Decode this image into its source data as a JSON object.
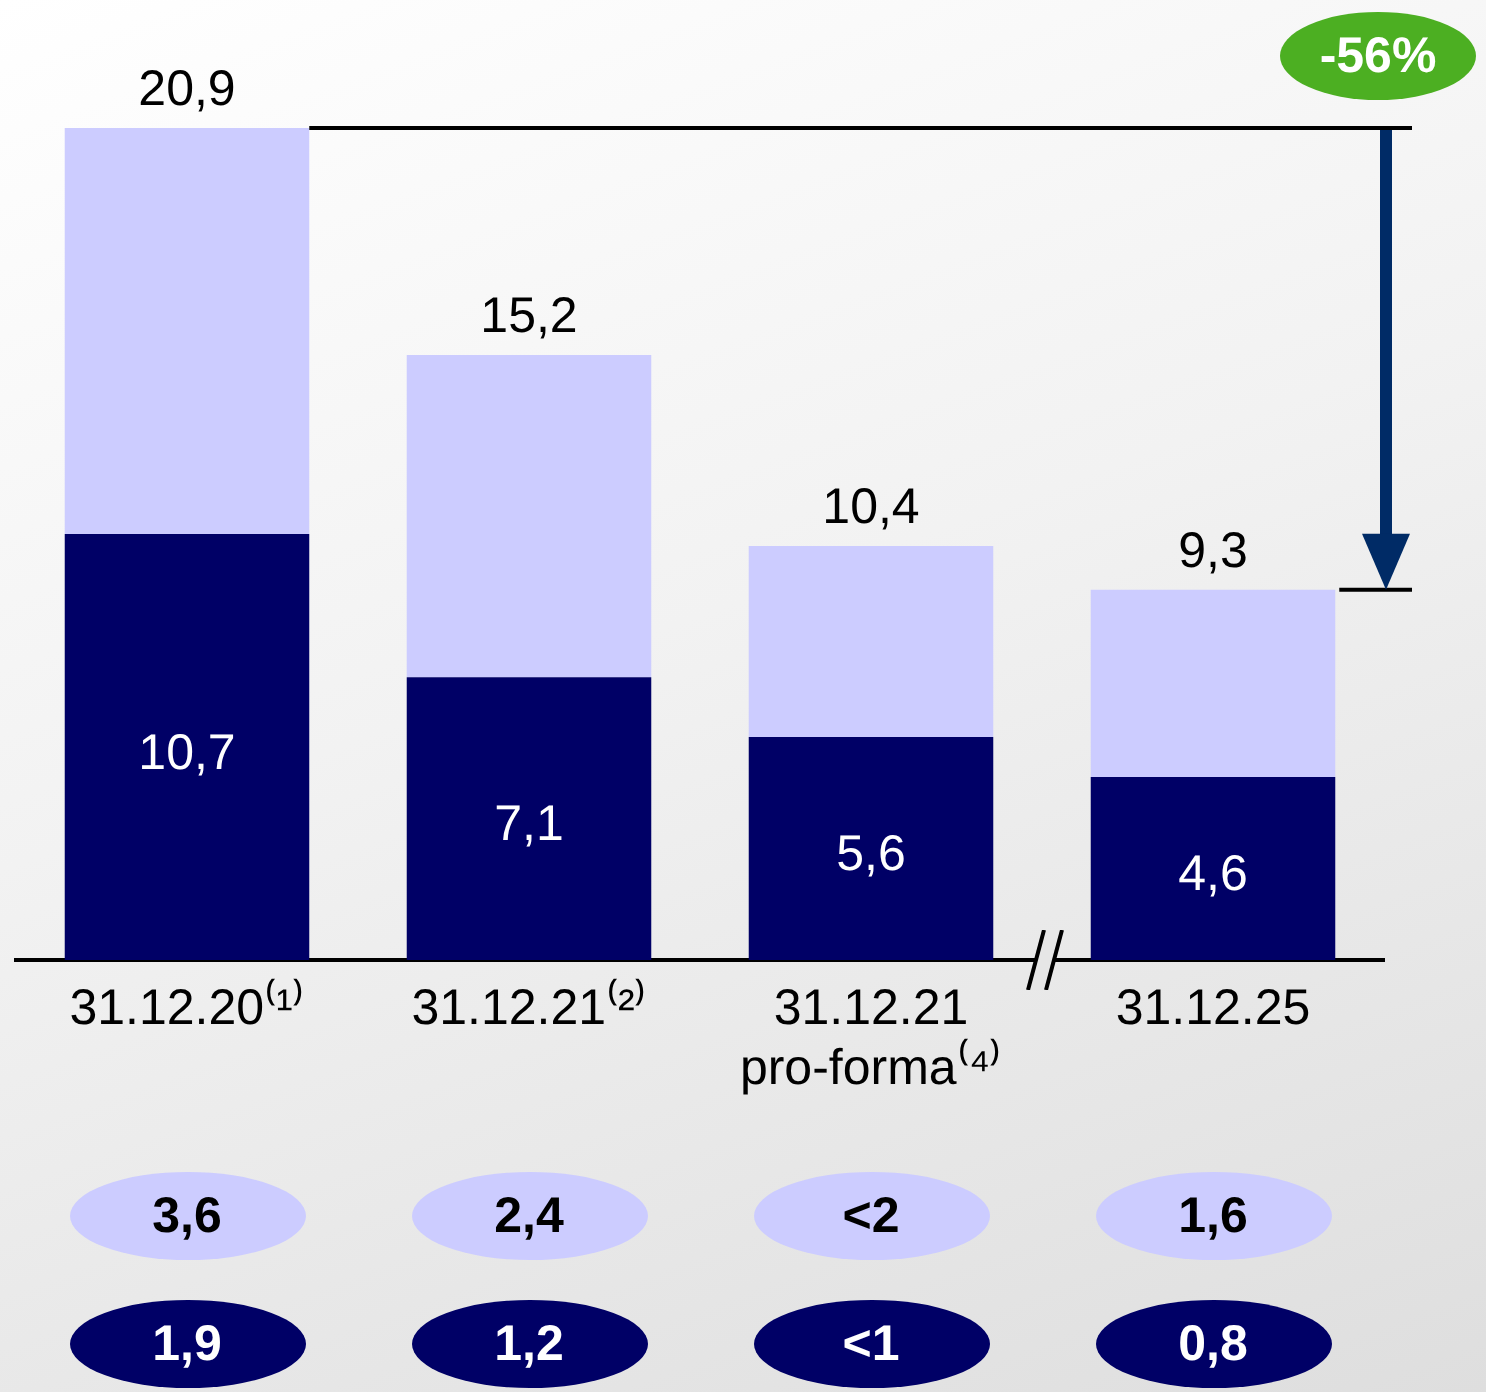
{
  "chart_data": {
    "type": "bar",
    "stacked": true,
    "legend": false,
    "grid": false,
    "tick_labels": "x",
    "categories": [
      "31.12.20⁽¹⁾",
      "31.12.21⁽²⁾",
      "31.12.21 pro-forma⁽⁴⁾",
      "31.12.25"
    ],
    "series": [
      {
        "color": "#000066",
        "values": [
          10.7,
          7.1,
          5.6,
          4.6
        ],
        "value_labels": [
          "10,7",
          "7,1",
          "5,6",
          "4,6"
        ]
      },
      {
        "color": "#ccccff",
        "values": [
          10.2,
          8.1,
          4.8,
          4.7
        ]
      }
    ],
    "totals": [
      "20,9",
      "15,2",
      "10,4",
      "9,3"
    ],
    "annotations": [
      "-56%",
      "3,6",
      "2,4",
      "<2",
      "1,6",
      "1,9",
      "1,2",
      "<1",
      "0,8"
    ]
  }
}
